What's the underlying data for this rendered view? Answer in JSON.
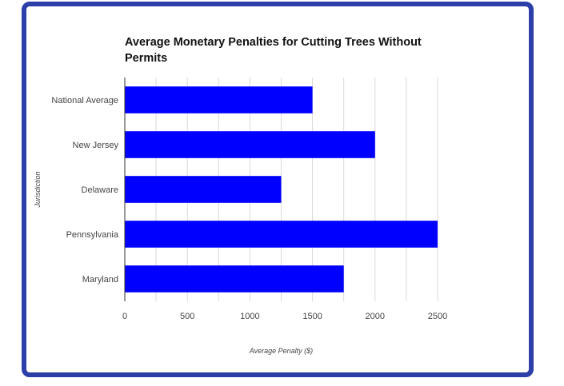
{
  "chart_data": {
    "type": "bar",
    "orientation": "horizontal",
    "title": "Average Monetary Penalties for Cutting Trees Without Permits",
    "xlabel": "Average Penalty ($)",
    "ylabel": "Jurisdiction",
    "categories": [
      "National Average",
      "New Jersey",
      "Delaware",
      "Pennsylvania",
      "Maryland"
    ],
    "values": [
      1500,
      2000,
      1250,
      2500,
      1750
    ],
    "xlim": [
      0,
      2500
    ],
    "xticks": [
      "0",
      "500",
      "1000",
      "1500",
      "2000",
      "2500"
    ],
    "bar_color": "#0000ff",
    "grid": true,
    "legend": "none"
  },
  "colors": {
    "frame": "#2c3ea8",
    "grid": "#d9d9d9",
    "axis": "#333333"
  }
}
